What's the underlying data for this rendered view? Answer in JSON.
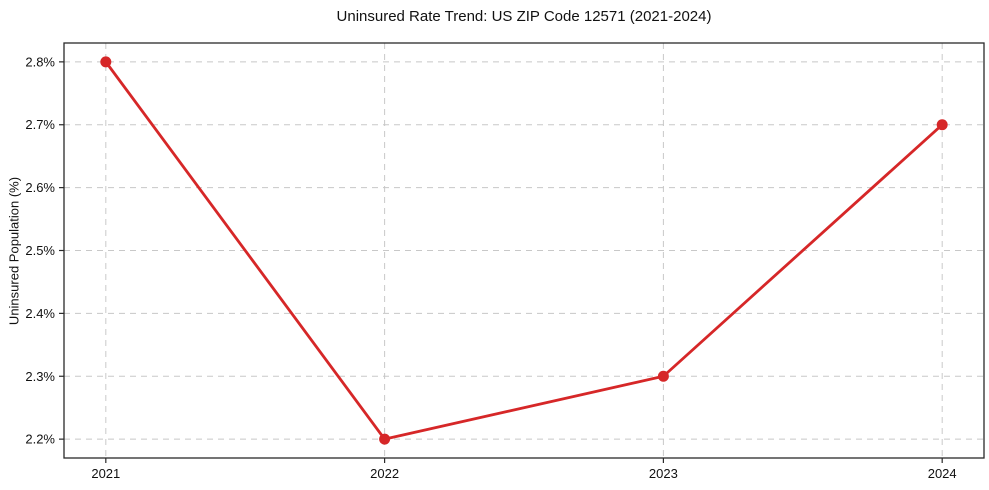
{
  "figure": {
    "title": "Uninsured Rate Trend: US ZIP Code 12571 (2021-2024)"
  },
  "chart_data": {
    "type": "line",
    "title": "Uninsured Rate Trend: US ZIP Code 12571 (2021-2024)",
    "xlabel": "",
    "ylabel": "Uninsured Population (%)",
    "categories": [
      "2021",
      "2022",
      "2023",
      "2024"
    ],
    "x": [
      2021,
      2022,
      2023,
      2024
    ],
    "values": [
      2.8,
      2.2,
      2.3,
      2.7
    ],
    "xtick_labels": [
      "2021",
      "2022",
      "2023",
      "2024"
    ],
    "yticks": [
      2.2,
      2.3,
      2.4,
      2.5,
      2.6,
      2.7,
      2.8
    ],
    "ytick_labels": [
      "2.2%",
      "2.3%",
      "2.4%",
      "2.5%",
      "2.6%",
      "2.7%",
      "2.8%"
    ],
    "xlim": [
      2020.85,
      2024.15
    ],
    "ylim": [
      2.17,
      2.83
    ],
    "grid": true,
    "grid_style": "dashed",
    "legend_position": "none",
    "line_color": "#d62728",
    "marker": "circle",
    "marker_color": "#d62728",
    "grid_color": "#c8c8c8",
    "spine_color": "#2a2a2a",
    "text_color": "#111111",
    "background": "#ffffff"
  }
}
